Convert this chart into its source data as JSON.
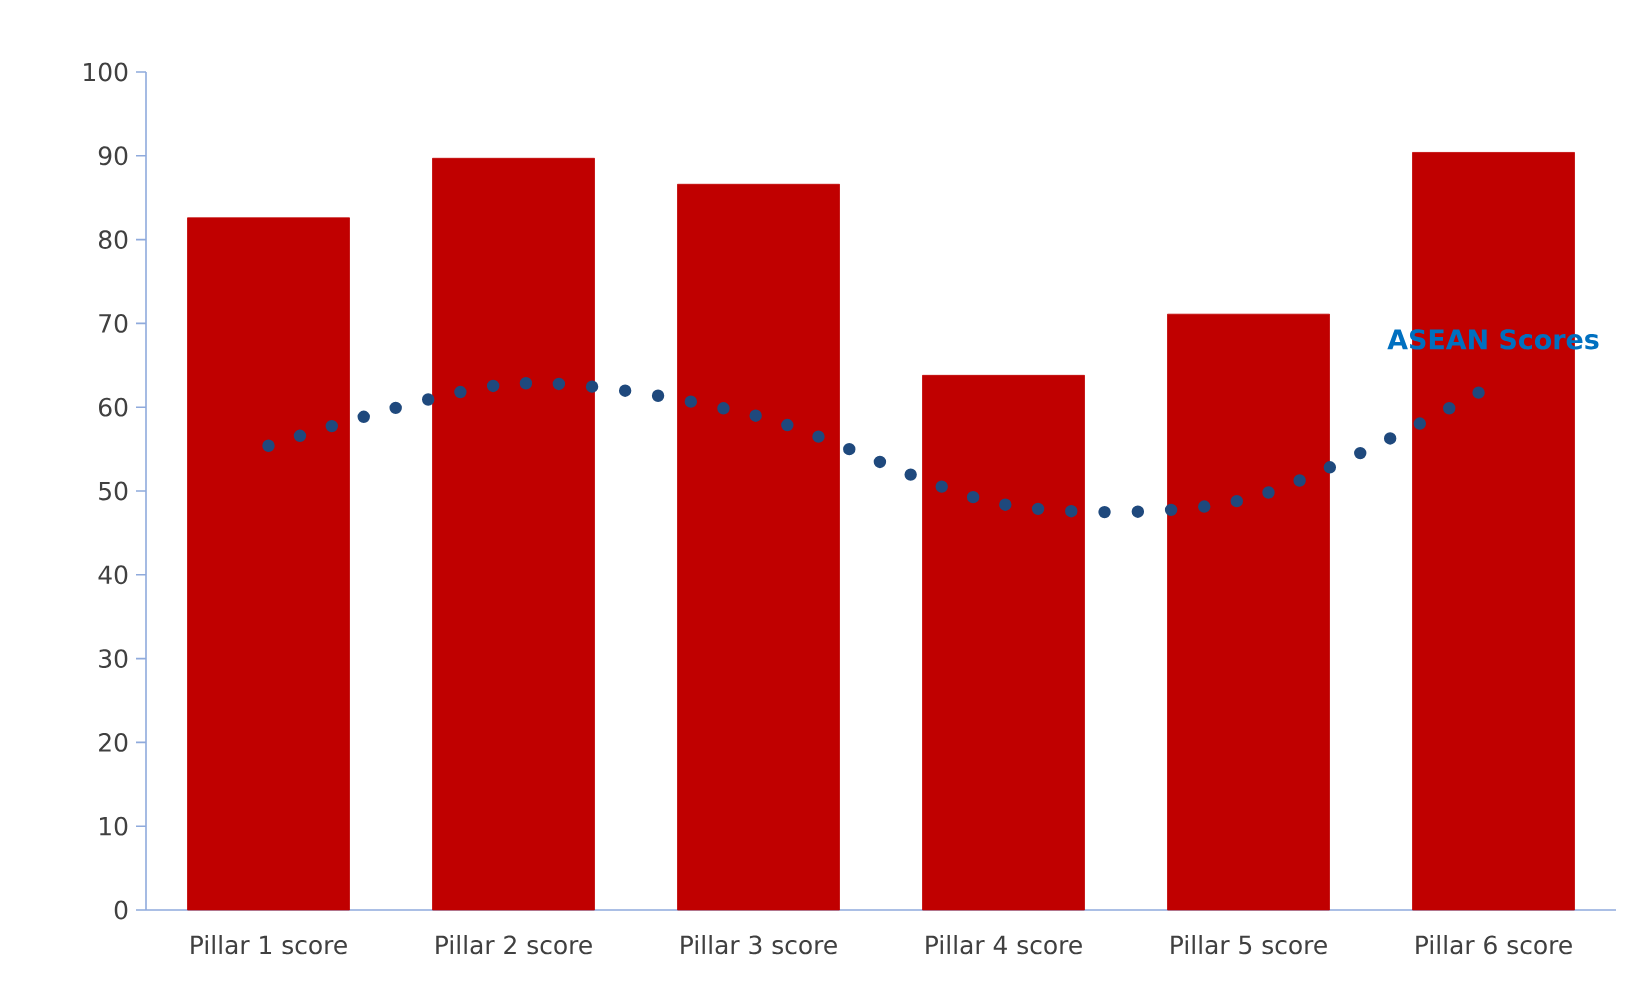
{
  "chart_data": {
    "type": "bar",
    "categories": [
      "Pillar 1 score",
      "Pillar 2 score",
      "Pillar 3 score",
      "Pillar 4 score",
      "Pillar 5 score",
      "Pillar 6 score"
    ],
    "series": [
      {
        "color": "#c00000",
        "values": [
          82.6,
          89.7,
          86.6,
          63.8,
          71.1,
          90.4
        ]
      },
      {
        "type": "line",
        "name": "ASEAN Scores",
        "color": "#1f497d",
        "line_style": "dotted",
        "values": [
          55.4,
          62.8,
          58.9,
          48.4,
          49.1,
          62.7
        ]
      }
    ],
    "ylim": [
      0,
      100
    ],
    "yticks": [
      0,
      10,
      20,
      30,
      40,
      50,
      60,
      70,
      80,
      90,
      100
    ]
  }
}
